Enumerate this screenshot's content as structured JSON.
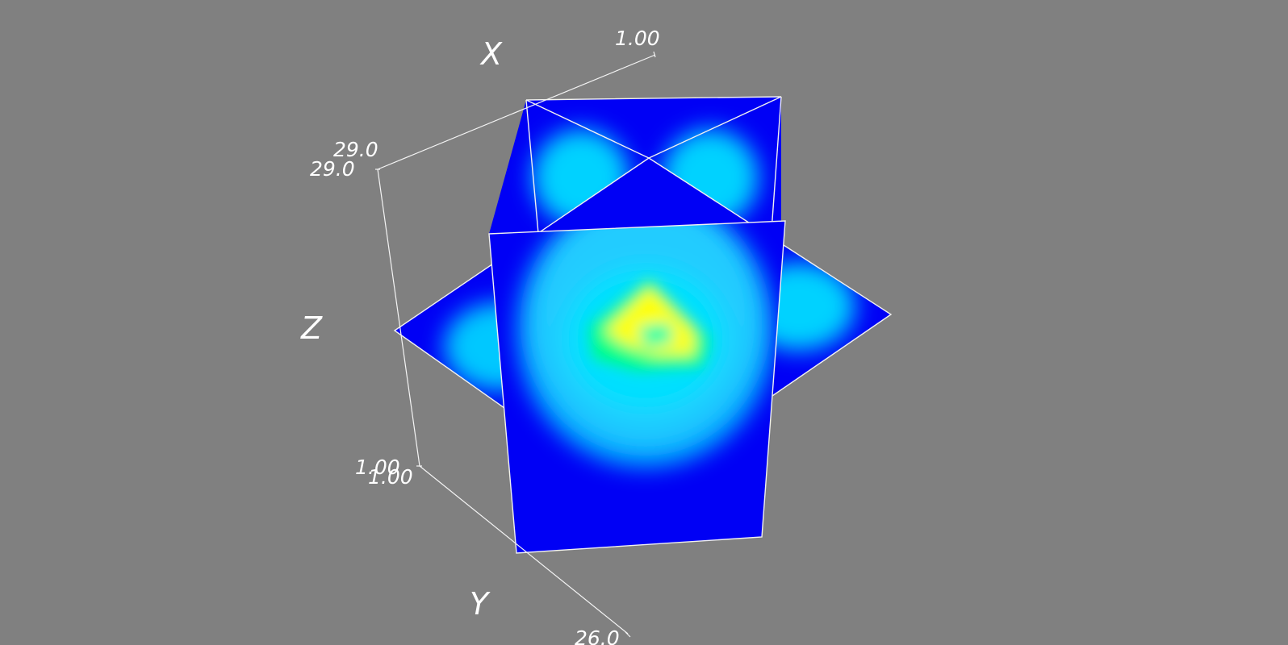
{
  "axes": {
    "x": {
      "title": "X",
      "min_label": "29.0",
      "max_label": "1.00"
    },
    "y": {
      "title": "Y",
      "min_label": "1.00",
      "max_label": "26.0"
    },
    "z": {
      "title": "Z",
      "min_label": "1.00",
      "max_label": "29.0"
    }
  },
  "colormap": [
    "#0000ff",
    "#00c8ff",
    "#00ffff",
    "#00ff66",
    "#ffff00"
  ]
}
